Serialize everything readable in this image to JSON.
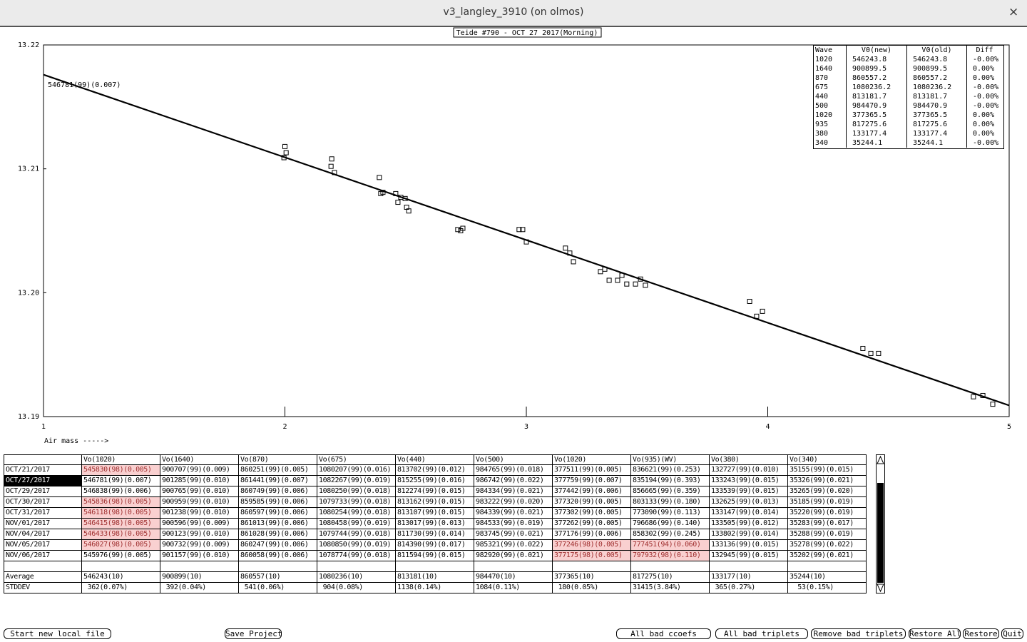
{
  "window": {
    "title": "v3_langley_3910 (on olmos)",
    "close": "×"
  },
  "chart_data": {
    "type": "scatter",
    "title": "Teide #790 - OCT 27 2017(Morning)",
    "annotation": "546781(99)(0.007)",
    "x_label": "Air mass ----->",
    "xlim": [
      1,
      5
    ],
    "xticks": [
      1,
      2,
      3,
      4,
      5
    ],
    "ylim": [
      13.19,
      13.22
    ],
    "yticks": [
      13.19,
      {
        "value": 13.2,
        "label": "13.20"
      },
      13.21,
      13.22
    ],
    "grid": false,
    "series": [
      {
        "style": "square",
        "color": "#000000",
        "x": [
          2.0,
          2.005,
          1.996,
          2.194,
          2.191,
          2.205,
          2.391,
          2.397,
          2.406,
          2.459,
          2.468,
          2.48,
          2.498,
          2.504,
          2.513,
          2.716,
          2.728,
          2.737,
          2.97,
          2.985,
          3.0,
          3.162,
          3.18,
          3.195,
          3.307,
          3.325,
          3.343,
          3.378,
          3.396,
          3.416,
          3.452,
          3.473,
          3.493,
          3.925,
          3.954,
          3.978,
          4.394,
          4.427,
          4.459,
          4.852,
          4.891,
          4.932
        ],
        "values": [
          13.2118,
          13.2113,
          13.2109,
          13.2108,
          13.2102,
          13.2097,
          13.2093,
          13.208,
          13.2081,
          13.208,
          13.2073,
          13.2077,
          13.2076,
          13.2069,
          13.2066,
          13.2051,
          13.205,
          13.2052,
          13.2051,
          13.2051,
          13.2041,
          13.2036,
          13.2032,
          13.2025,
          13.2017,
          13.2019,
          13.201,
          13.201,
          13.2014,
          13.2007,
          13.2007,
          13.2011,
          13.2006,
          13.1993,
          13.1981,
          13.1985,
          13.1955,
          13.1951,
          13.1951,
          13.1916,
          13.1917,
          13.191
        ]
      },
      {
        "style": "line",
        "color": "#000000",
        "x": [
          1,
          5
        ],
        "values": [
          13.2176,
          13.1909
        ]
      }
    ]
  },
  "summary_table": {
    "header": [
      "Wave",
      "V0(new)",
      "V0(old)",
      "Diff"
    ],
    "rows": [
      [
        "1020",
        "546243.8",
        "546243.8",
        "-0.00%"
      ],
      [
        "1640",
        "900899.5",
        "900899.5",
        "0.00%"
      ],
      [
        "870",
        "860557.2",
        "860557.2",
        "0.00%"
      ],
      [
        "675",
        "1080236.2",
        "1080236.2",
        "-0.00%"
      ],
      [
        "440",
        "813181.7",
        "813181.7",
        "-0.00%"
      ],
      [
        "500",
        "984470.9",
        "984470.9",
        "-0.00%"
      ],
      [
        "1020",
        "377365.5",
        "377365.5",
        "0.00%"
      ],
      [
        "935",
        "817275.6",
        "817275.6",
        "0.00%"
      ],
      [
        "380",
        "133177.4",
        "133177.4",
        "0.00%"
      ],
      [
        "340",
        "35244.1",
        "35244.1",
        "-0.00%"
      ]
    ]
  },
  "table": {
    "columns": [
      "Vo(1020)",
      "Vo(1640)",
      "Vo(870)",
      "Vo(675)",
      "Vo(440)",
      "Vo(500)",
      "Vo(1020)",
      "Vo(935)(WV)",
      "Vo(380)",
      "Vo(340)"
    ],
    "selected": 1,
    "rows": [
      {
        "date": "OCT/21/2017",
        "flagged": [
          0
        ],
        "cells": [
          "545830(98)(0.005)",
          "900707(99)(0.009)",
          "860251(99)(0.005)",
          "1080207(99)(0.016)",
          "813702(99)(0.012)",
          "984765(99)(0.018)",
          "377511(99)(0.005)",
          "836621(99)(0.253)",
          "132727(99)(0.010)",
          "35155(99)(0.015)"
        ]
      },
      {
        "date": "OCT/27/2017",
        "flagged": [],
        "cells": [
          "546781(99)(0.007)",
          "901285(99)(0.010)",
          "861441(99)(0.007)",
          "1082267(99)(0.019)",
          "815255(99)(0.016)",
          "986742(99)(0.022)",
          "377759(99)(0.007)",
          "835194(99)(0.393)",
          "133243(99)(0.015)",
          "35326(99)(0.021)"
        ]
      },
      {
        "date": "OCT/29/2017",
        "flagged": [],
        "cells": [
          "546838(99)(0.006)",
          "900765(99)(0.010)",
          "860749(99)(0.006)",
          "1080250(99)(0.018)",
          "812274(99)(0.015)",
          "984334(99)(0.021)",
          "377442(99)(0.006)",
          "856665(99)(0.359)",
          "133539(99)(0.015)",
          "35265(99)(0.020)"
        ]
      },
      {
        "date": "OCT/30/2017",
        "flagged": [
          0
        ],
        "cells": [
          "545836(98)(0.005)",
          "900959(99)(0.010)",
          "859585(99)(0.006)",
          "1079733(99)(0.018)",
          "813162(99)(0.015)",
          "983222(99)(0.020)",
          "377320(99)(0.005)",
          "803133(99)(0.180)",
          "132625(99)(0.013)",
          "35185(99)(0.019)"
        ]
      },
      {
        "date": "OCT/31/2017",
        "flagged": [
          0
        ],
        "cells": [
          "546118(98)(0.005)",
          "901238(99)(0.010)",
          "860597(99)(0.006)",
          "1080254(99)(0.018)",
          "813107(99)(0.015)",
          "984339(99)(0.021)",
          "377302(99)(0.005)",
          "773090(99)(0.113)",
          "133147(99)(0.014)",
          "35220(99)(0.019)"
        ]
      },
      {
        "date": "NOV/01/2017",
        "flagged": [
          0
        ],
        "cells": [
          "546415(98)(0.005)",
          "900596(99)(0.009)",
          "861013(99)(0.006)",
          "1080458(99)(0.019)",
          "813017(99)(0.013)",
          "984533(99)(0.019)",
          "377262(99)(0.005)",
          "796686(99)(0.140)",
          "133505(99)(0.012)",
          "35283(99)(0.017)"
        ]
      },
      {
        "date": "NOV/04/2017",
        "flagged": [
          0
        ],
        "cells": [
          "546433(98)(0.005)",
          "900123(99)(0.010)",
          "861028(99)(0.006)",
          "1079744(99)(0.018)",
          "811730(99)(0.014)",
          "983745(99)(0.021)",
          "377176(99)(0.006)",
          "858302(99)(0.245)",
          "133802(99)(0.014)",
          "35288(99)(0.019)"
        ]
      },
      {
        "date": "NOV/05/2017",
        "flagged": [
          0,
          6,
          7
        ],
        "cells": [
          "546027(98)(0.005)",
          "900732(99)(0.009)",
          "860247(99)(0.006)",
          "1080850(99)(0.019)",
          "814390(99)(0.017)",
          "985321(99)(0.022)",
          "377246(98)(0.005)",
          "777451(94)(0.060)",
          "133136(99)(0.015)",
          "35278(99)(0.022)"
        ]
      },
      {
        "date": "NOV/06/2017",
        "flagged": [
          6,
          7
        ],
        "cells": [
          "545976(99)(0.005)",
          "901157(99)(0.010)",
          "860058(99)(0.006)",
          "1078774(99)(0.018)",
          "811594(99)(0.015)",
          "982920(99)(0.021)",
          "377175(98)(0.005)",
          "797932(98)(0.110)",
          "132945(99)(0.015)",
          "35202(99)(0.021)"
        ]
      }
    ],
    "average": {
      "date": "Average",
      "cells": [
        "546243(10)",
        "900899(10)",
        "860557(10)",
        "1080236(10)",
        "813181(10)",
        "984470(10)",
        "377365(10)",
        "817275(10)",
        "133177(10)",
        "35244(10)"
      ]
    },
    "stddev": {
      "date": "STDDEV",
      "cells": [
        " 362(0.07%)",
        " 392(0.04%)",
        " 541(0.06%)",
        " 904(0.08%)",
        "1138(0.14%)",
        "1084(0.11%)",
        " 180(0.05%)",
        "31415(3.84%)",
        " 365(0.27%)",
        "  53(0.15%)"
      ]
    }
  },
  "buttons": [
    "Start new local file",
    "Save Project",
    "All bad ccoefs",
    "All bad triplets",
    "Remove bad triplets",
    "Restore All",
    "Restore",
    "Quit"
  ]
}
